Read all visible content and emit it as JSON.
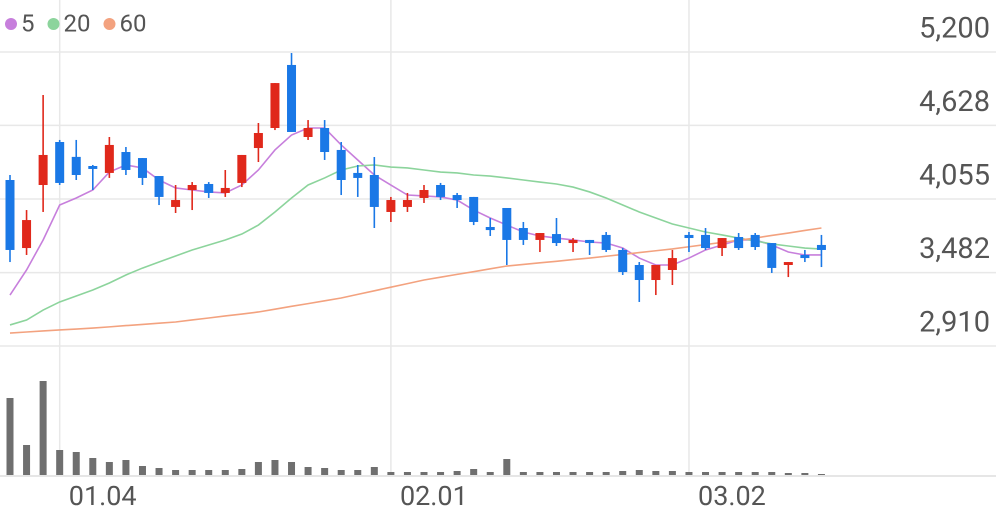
{
  "chart_data": {
    "type": "candlestick",
    "categories": [
      null,
      null,
      null,
      "01.04",
      null,
      null,
      null,
      null,
      null,
      null,
      null,
      null,
      null,
      null,
      null,
      null,
      null,
      null,
      null,
      null,
      null,
      null,
      null,
      "02.01",
      null,
      null,
      null,
      null,
      null,
      null,
      null,
      null,
      null,
      null,
      null,
      null,
      null,
      null,
      null,
      null,
      null,
      "03.02",
      null,
      null,
      null,
      null,
      null,
      null,
      null,
      null
    ],
    "open": [
      4203,
      3673,
      4164,
      4499,
      4383,
      4312,
      4258,
      4421,
      4374,
      4234,
      3993,
      4125,
      4172,
      4102,
      4180,
      4452,
      4608,
      5099,
      4538,
      4608,
      4437,
      4258,
      4242,
      3954,
      3993,
      4063,
      4164,
      4086,
      4071,
      3837,
      3985,
      3829,
      3736,
      3782,
      3712,
      3736,
      3775,
      3658,
      3541,
      3424,
      3502,
      3775,
      3775,
      3673,
      3759,
      3775,
      3712,
      3541,
      3619,
      3697
    ],
    "high": [
      4242,
      3969,
      4865,
      4515,
      4515,
      4320,
      4538,
      4460,
      4374,
      4234,
      4164,
      4187,
      4187,
      4281,
      4398,
      4647,
      4958,
      5192,
      4670,
      4670,
      4499,
      4320,
      4382,
      4071,
      4102,
      4164,
      4180,
      4102,
      4071,
      3907,
      3985,
      3876,
      3790,
      3907,
      3751,
      3736,
      3798,
      3673,
      3564,
      3541,
      3658,
      3798,
      3829,
      3751,
      3790,
      3790,
      3712,
      3564,
      3658,
      3775
    ],
    "low": [
      3564,
      3619,
      3954,
      4164,
      4203,
      4125,
      4219,
      4242,
      4164,
      4008,
      3946,
      3969,
      4063,
      4071,
      4148,
      4343,
      4592,
      4577,
      4515,
      4359,
      4086,
      4071,
      3829,
      3876,
      3954,
      4024,
      4047,
      3985,
      3852,
      3767,
      3541,
      3697,
      3642,
      3689,
      3642,
      3619,
      3642,
      3463,
      3253,
      3307,
      3385,
      3642,
      3658,
      3611,
      3658,
      3658,
      3479,
      3447,
      3564,
      3525
    ],
    "close": [
      3658,
      3891,
      4398,
      4180,
      4242,
      4289,
      4476,
      4281,
      4219,
      4071,
      4047,
      4164,
      4102,
      4141,
      4398,
      4569,
      4958,
      4577,
      4608,
      4421,
      4203,
      4219,
      3993,
      4047,
      4047,
      4125,
      4071,
      4047,
      3876,
      3813,
      3736,
      3736,
      3790,
      3712,
      3736,
      3712,
      3658,
      3486,
      3424,
      3541,
      3595,
      3751,
      3673,
      3751,
      3673,
      3681,
      3518,
      3564,
      3595,
      3658
    ],
    "up_color": "#e0281b",
    "down_color": "#1a78e6",
    "series": [
      {
        "name": "5",
        "color": "#c77fdc",
        "values": [
          3307,
          3502,
          3736,
          4008,
          4063,
          4125,
          4265,
          4320,
          4297,
          4203,
          4141,
          4125,
          4110,
          4102,
          4164,
          4281,
          4437,
          4553,
          4608,
          4608,
          4476,
          4359,
          4242,
          4164,
          4086,
          4079,
          4071,
          4047,
          3969,
          3907,
          3852,
          3798,
          3767,
          3751,
          3736,
          3720,
          3712,
          3673,
          3595,
          3541,
          3541,
          3595,
          3658,
          3697,
          3736,
          3736,
          3697,
          3642,
          3619,
          3619
        ]
      },
      {
        "name": "20",
        "color": "#8cd49c",
        "values": [
          3074,
          3112,
          3190,
          3253,
          3299,
          3346,
          3401,
          3463,
          3517,
          3564,
          3611,
          3658,
          3697,
          3736,
          3782,
          3852,
          3954,
          4063,
          4164,
          4219,
          4281,
          4312,
          4320,
          4304,
          4297,
          4281,
          4265,
          4258,
          4242,
          4234,
          4219,
          4203,
          4187,
          4172,
          4148,
          4110,
          4063,
          4008,
          3954,
          3907,
          3860,
          3829,
          3798,
          3775,
          3751,
          3728,
          3705,
          3689,
          3673,
          3665
        ]
      },
      {
        "name": "60",
        "color": "#f3a27f",
        "values": [
          3011,
          3019,
          3027,
          3035,
          3042,
          3050,
          3059,
          3069,
          3078,
          3088,
          3097,
          3113,
          3128,
          3144,
          3159,
          3175,
          3197,
          3219,
          3240,
          3262,
          3284,
          3312,
          3340,
          3368,
          3396,
          3424,
          3446,
          3468,
          3489,
          3511,
          3533,
          3545,
          3558,
          3570,
          3583,
          3595,
          3609,
          3623,
          3638,
          3652,
          3666,
          3683,
          3700,
          3717,
          3734,
          3751,
          3771,
          3790,
          3810,
          3829
        ]
      }
    ],
    "volume": [
      77,
      30,
      94,
      25,
      23,
      17,
      13,
      15,
      9,
      7,
      5,
      5,
      5,
      5,
      6,
      13,
      15,
      13,
      8,
      7,
      5,
      5,
      8,
      3,
      3,
      3,
      3,
      4,
      6,
      3,
      16,
      3,
      3,
      3,
      3,
      3,
      3,
      4,
      5,
      4,
      4,
      3,
      3,
      3,
      3,
      3,
      3,
      2,
      2,
      1
    ],
    "volume_color": "#6f6f6f",
    "ylim": [
      2910,
      5200
    ],
    "yticks": [
      {
        "value": 5200,
        "label": "5,200"
      },
      {
        "value": 4628,
        "label": "4,628"
      },
      {
        "value": 4055,
        "label": "4,055"
      },
      {
        "value": 3482,
        "label": "3,482"
      },
      {
        "value": 2910,
        "label": "2,910"
      }
    ],
    "y2lim": [
      0,
      100
    ],
    "grid": true
  }
}
